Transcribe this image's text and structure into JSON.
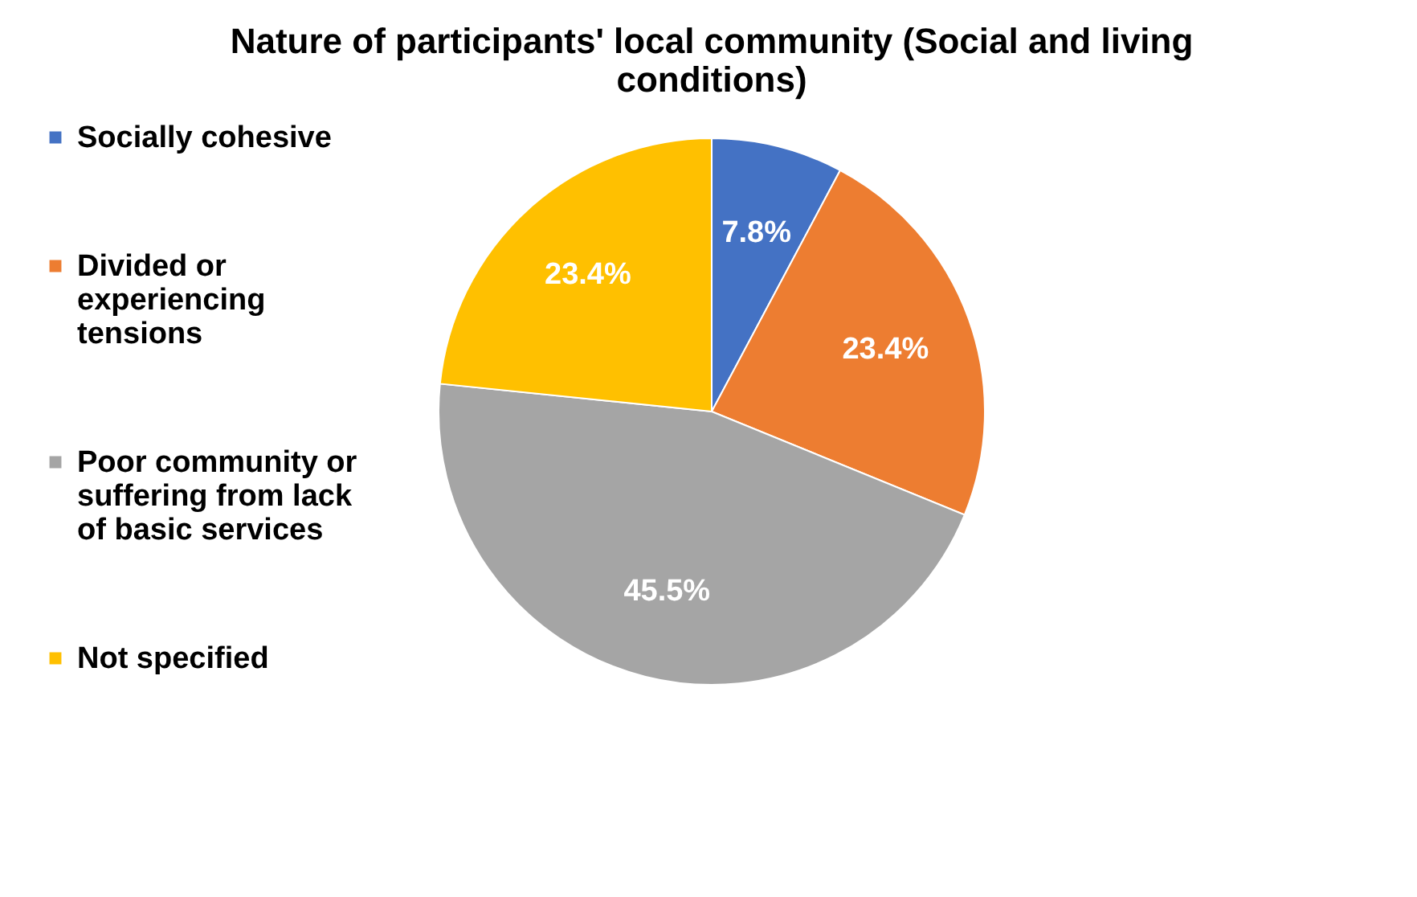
{
  "chart_data": {
    "type": "pie",
    "title": "Nature of participants' local community (Social and living conditions)",
    "categories": [
      "Socially cohesive",
      "Divided or experiencing tensions",
      "Poor community or suffering from lack of basic services",
      "Not specified"
    ],
    "values": [
      7.8,
      23.4,
      45.5,
      23.4
    ],
    "colors": [
      "#4472c4",
      "#ed7d31",
      "#a5a5a5",
      "#ffc000"
    ],
    "value_labels": [
      "7.8%",
      "23.4%",
      "45.5%",
      "23.4%"
    ],
    "legend": "left"
  }
}
